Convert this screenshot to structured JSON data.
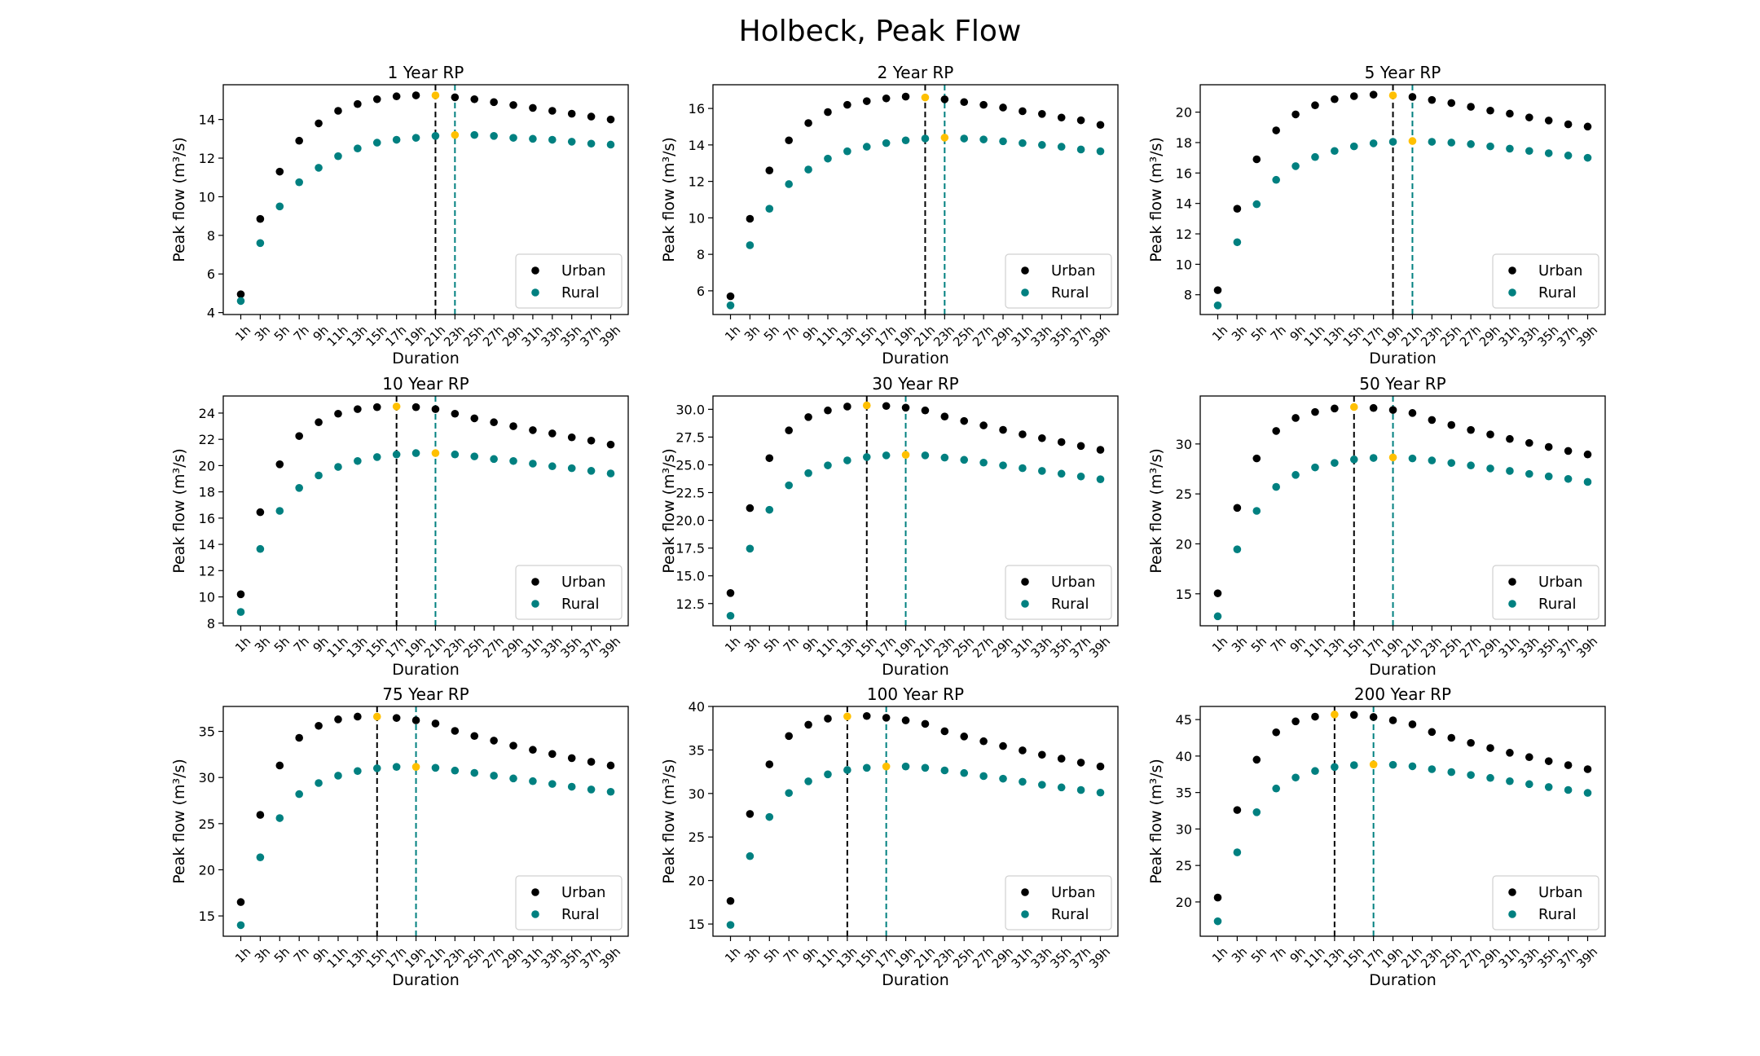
{
  "figure": {
    "title": "Holbeck, Peak Flow"
  },
  "chart_data": [
    {
      "type": "scatter",
      "title": "1 Year RP",
      "xlabel": "Duration",
      "ylabel": "Peak flow (m³/s)",
      "categories": [
        "1h",
        "3h",
        "5h",
        "7h",
        "9h",
        "11h",
        "13h",
        "15h",
        "17h",
        "19h",
        "21h",
        "23h",
        "25h",
        "27h",
        "29h",
        "31h",
        "33h",
        "35h",
        "37h",
        "39h"
      ],
      "ylim": [
        3.9,
        15.8
      ],
      "yticks": [
        4,
        6,
        8,
        10,
        12,
        14
      ],
      "ytick_labels": [
        "4",
        "6",
        "8",
        "10",
        "12",
        "14"
      ],
      "series": [
        {
          "name": "Urban",
          "color": "#000000",
          "values": [
            4.95,
            8.85,
            11.3,
            12.9,
            13.8,
            14.45,
            14.8,
            15.05,
            15.2,
            15.25,
            15.25,
            15.15,
            15.05,
            14.9,
            14.75,
            14.6,
            14.45,
            14.3,
            14.15,
            14.0
          ],
          "peak_index": 10,
          "peak_color": "#FFC000"
        },
        {
          "name": "Rural",
          "color": "#008080",
          "values": [
            4.6,
            7.6,
            9.5,
            10.75,
            11.5,
            12.1,
            12.5,
            12.8,
            12.95,
            13.05,
            13.15,
            13.2,
            13.2,
            13.15,
            13.05,
            13.0,
            12.95,
            12.85,
            12.75,
            12.7
          ],
          "peak_index": 11,
          "peak_color": "#FFC000"
        }
      ],
      "vlines": [
        {
          "at": "21h",
          "color": "#000000"
        },
        {
          "at": "23h",
          "color": "#008080"
        }
      ],
      "legend": "lower-right"
    },
    {
      "type": "scatter",
      "title": "2 Year RP",
      "xlabel": "Duration",
      "ylabel": "Peak flow (m³/s)",
      "categories": [
        "1h",
        "3h",
        "5h",
        "7h",
        "9h",
        "11h",
        "13h",
        "15h",
        "17h",
        "19h",
        "21h",
        "23h",
        "25h",
        "27h",
        "29h",
        "31h",
        "33h",
        "35h",
        "37h",
        "39h"
      ],
      "ylim": [
        4.7,
        17.3
      ],
      "yticks": [
        6,
        8,
        10,
        12,
        14,
        16
      ],
      "ytick_labels": [
        "6",
        "8",
        "10",
        "12",
        "14",
        "16"
      ],
      "series": [
        {
          "name": "Urban",
          "color": "#000000",
          "values": [
            5.7,
            9.95,
            12.6,
            14.25,
            15.2,
            15.8,
            16.2,
            16.4,
            16.55,
            16.65,
            16.6,
            16.5,
            16.35,
            16.2,
            16.05,
            15.85,
            15.7,
            15.5,
            15.35,
            15.1
          ],
          "peak_index": 10,
          "peak_color": "#FFC000"
        },
        {
          "name": "Rural",
          "color": "#008080",
          "values": [
            5.2,
            8.5,
            10.5,
            11.85,
            12.65,
            13.25,
            13.65,
            13.9,
            14.1,
            14.25,
            14.35,
            14.4,
            14.35,
            14.3,
            14.2,
            14.1,
            14.0,
            13.9,
            13.75,
            13.65
          ],
          "peak_index": 11,
          "peak_color": "#FFC000"
        }
      ],
      "vlines": [
        {
          "at": "21h",
          "color": "#000000"
        },
        {
          "at": "23h",
          "color": "#008080"
        }
      ],
      "legend": "lower-right"
    },
    {
      "type": "scatter",
      "title": "5 Year RP",
      "xlabel": "Duration",
      "ylabel": "Peak flow (m³/s)",
      "categories": [
        "1h",
        "3h",
        "5h",
        "7h",
        "9h",
        "11h",
        "13h",
        "15h",
        "17h",
        "19h",
        "21h",
        "23h",
        "25h",
        "27h",
        "29h",
        "31h",
        "33h",
        "35h",
        "37h",
        "39h"
      ],
      "ylim": [
        6.7,
        21.8
      ],
      "yticks": [
        8,
        10,
        12,
        14,
        16,
        18,
        20
      ],
      "ytick_labels": [
        "8",
        "10",
        "12",
        "14",
        "16",
        "18",
        "20"
      ],
      "series": [
        {
          "name": "Urban",
          "color": "#000000",
          "values": [
            8.3,
            13.65,
            16.9,
            18.8,
            19.85,
            20.45,
            20.85,
            21.05,
            21.15,
            21.1,
            21.0,
            20.8,
            20.6,
            20.35,
            20.1,
            19.9,
            19.65,
            19.45,
            19.2,
            19.05
          ],
          "peak_index": 9,
          "peak_color": "#FFC000"
        },
        {
          "name": "Rural",
          "color": "#008080",
          "values": [
            7.3,
            11.45,
            13.95,
            15.55,
            16.45,
            17.05,
            17.45,
            17.75,
            17.95,
            18.05,
            18.1,
            18.05,
            18.0,
            17.9,
            17.75,
            17.6,
            17.45,
            17.3,
            17.15,
            17.0
          ],
          "peak_index": 10,
          "peak_color": "#FFC000"
        }
      ],
      "vlines": [
        {
          "at": "19h",
          "color": "#000000"
        },
        {
          "at": "21h",
          "color": "#008080"
        }
      ],
      "legend": "lower-right"
    },
    {
      "type": "scatter",
      "title": "10 Year RP",
      "xlabel": "Duration",
      "ylabel": "Peak flow (m³/s)",
      "categories": [
        "1h",
        "3h",
        "5h",
        "7h",
        "9h",
        "11h",
        "13h",
        "15h",
        "17h",
        "19h",
        "21h",
        "23h",
        "25h",
        "27h",
        "29h",
        "31h",
        "33h",
        "35h",
        "37h",
        "39h"
      ],
      "ylim": [
        7.8,
        25.3
      ],
      "yticks": [
        8,
        10,
        12,
        14,
        16,
        18,
        20,
        22,
        24
      ],
      "ytick_labels": [
        "8",
        "10",
        "12",
        "14",
        "16",
        "18",
        "20",
        "22",
        "24"
      ],
      "series": [
        {
          "name": "Urban",
          "color": "#000000",
          "values": [
            10.2,
            16.45,
            20.1,
            22.25,
            23.3,
            23.95,
            24.3,
            24.45,
            24.5,
            24.45,
            24.3,
            23.95,
            23.6,
            23.3,
            23.0,
            22.7,
            22.45,
            22.15,
            21.9,
            21.6
          ],
          "peak_index": 8,
          "peak_color": "#FFC000"
        },
        {
          "name": "Rural",
          "color": "#008080",
          "values": [
            8.85,
            13.65,
            16.55,
            18.3,
            19.25,
            19.9,
            20.35,
            20.65,
            20.85,
            20.95,
            20.95,
            20.85,
            20.7,
            20.5,
            20.35,
            20.15,
            19.95,
            19.8,
            19.6,
            19.4
          ],
          "peak_index": 10,
          "peak_color": "#FFC000"
        }
      ],
      "vlines": [
        {
          "at": "17h",
          "color": "#000000"
        },
        {
          "at": "21h",
          "color": "#008080"
        }
      ],
      "legend": "lower-right"
    },
    {
      "type": "scatter",
      "title": "30 Year RP",
      "xlabel": "Duration",
      "ylabel": "Peak flow (m³/s)",
      "categories": [
        "1h",
        "3h",
        "5h",
        "7h",
        "9h",
        "11h",
        "13h",
        "15h",
        "17h",
        "19h",
        "21h",
        "23h",
        "25h",
        "27h",
        "29h",
        "31h",
        "33h",
        "35h",
        "37h",
        "39h"
      ],
      "ylim": [
        10.5,
        31.2
      ],
      "yticks": [
        12.5,
        15.0,
        17.5,
        20.0,
        22.5,
        25.0,
        27.5,
        30.0
      ],
      "ytick_labels": [
        "12.5",
        "15.0",
        "17.5",
        "20.0",
        "22.5",
        "25.0",
        "27.5",
        "30.0"
      ],
      "series": [
        {
          "name": "Urban",
          "color": "#000000",
          "values": [
            13.45,
            21.1,
            25.6,
            28.1,
            29.3,
            29.9,
            30.25,
            30.35,
            30.3,
            30.15,
            29.9,
            29.35,
            28.95,
            28.55,
            28.15,
            27.75,
            27.4,
            27.05,
            26.7,
            26.35
          ],
          "peak_index": 7,
          "peak_color": "#FFC000"
        },
        {
          "name": "Rural",
          "color": "#008080",
          "values": [
            11.4,
            17.45,
            20.95,
            23.15,
            24.25,
            24.95,
            25.4,
            25.7,
            25.85,
            25.9,
            25.85,
            25.65,
            25.45,
            25.2,
            24.95,
            24.7,
            24.45,
            24.2,
            23.95,
            23.7
          ],
          "peak_index": 9,
          "peak_color": "#FFC000"
        }
      ],
      "vlines": [
        {
          "at": "15h",
          "color": "#000000"
        },
        {
          "at": "19h",
          "color": "#008080"
        }
      ],
      "legend": "lower-right"
    },
    {
      "type": "scatter",
      "title": "50 Year RP",
      "xlabel": "Duration",
      "ylabel": "Peak flow (m³/s)",
      "categories": [
        "1h",
        "3h",
        "5h",
        "7h",
        "9h",
        "11h",
        "13h",
        "15h",
        "17h",
        "19h",
        "21h",
        "23h",
        "25h",
        "27h",
        "29h",
        "31h",
        "33h",
        "35h",
        "37h",
        "39h"
      ],
      "ylim": [
        11.8,
        34.8
      ],
      "yticks": [
        15,
        20,
        25,
        30
      ],
      "ytick_labels": [
        "15",
        "20",
        "25",
        "30"
      ],
      "series": [
        {
          "name": "Urban",
          "color": "#000000",
          "values": [
            15.05,
            23.6,
            28.55,
            31.3,
            32.6,
            33.2,
            33.55,
            33.7,
            33.6,
            33.4,
            33.1,
            32.4,
            31.9,
            31.4,
            30.95,
            30.5,
            30.1,
            29.7,
            29.3,
            28.95
          ],
          "peak_index": 7,
          "peak_color": "#FFC000"
        },
        {
          "name": "Rural",
          "color": "#008080",
          "values": [
            12.75,
            19.45,
            23.3,
            25.7,
            26.9,
            27.65,
            28.1,
            28.45,
            28.6,
            28.65,
            28.55,
            28.35,
            28.1,
            27.85,
            27.55,
            27.3,
            27.0,
            26.75,
            26.5,
            26.2
          ],
          "peak_index": 9,
          "peak_color": "#FFC000"
        }
      ],
      "vlines": [
        {
          "at": "15h",
          "color": "#000000"
        },
        {
          "at": "19h",
          "color": "#008080"
        }
      ],
      "legend": "lower-right"
    },
    {
      "type": "scatter",
      "title": "75 Year RP",
      "xlabel": "Duration",
      "ylabel": "Peak flow (m³/s)",
      "categories": [
        "1h",
        "3h",
        "5h",
        "7h",
        "9h",
        "11h",
        "13h",
        "15h",
        "17h",
        "19h",
        "21h",
        "23h",
        "25h",
        "27h",
        "29h",
        "31h",
        "33h",
        "35h",
        "37h",
        "39h"
      ],
      "ylim": [
        12.8,
        37.7
      ],
      "yticks": [
        15,
        20,
        25,
        30,
        35
      ],
      "ytick_labels": [
        "15",
        "20",
        "25",
        "30",
        "35"
      ],
      "series": [
        {
          "name": "Urban",
          "color": "#000000",
          "values": [
            16.5,
            25.95,
            31.3,
            34.3,
            35.6,
            36.3,
            36.6,
            36.6,
            36.45,
            36.2,
            35.85,
            35.05,
            34.5,
            34.0,
            33.45,
            33.0,
            32.55,
            32.1,
            31.7,
            31.3
          ],
          "peak_index": 7,
          "peak_color": "#FFC000"
        },
        {
          "name": "Rural",
          "color": "#008080",
          "values": [
            14.0,
            21.35,
            25.6,
            28.2,
            29.4,
            30.2,
            30.7,
            31.0,
            31.15,
            31.15,
            31.05,
            30.75,
            30.5,
            30.2,
            29.9,
            29.6,
            29.3,
            29.0,
            28.7,
            28.45
          ],
          "peak_index": 9,
          "peak_color": "#FFC000"
        }
      ],
      "vlines": [
        {
          "at": "15h",
          "color": "#000000"
        },
        {
          "at": "19h",
          "color": "#008080"
        }
      ],
      "legend": "lower-right"
    },
    {
      "type": "scatter",
      "title": "100 Year RP",
      "xlabel": "Duration",
      "ylabel": "Peak flow (m³/s)",
      "categories": [
        "1h",
        "3h",
        "5h",
        "7h",
        "9h",
        "11h",
        "13h",
        "15h",
        "17h",
        "19h",
        "21h",
        "23h",
        "25h",
        "27h",
        "29h",
        "31h",
        "33h",
        "35h",
        "37h",
        "39h"
      ],
      "ylim": [
        13.6,
        40.0
      ],
      "yticks": [
        15,
        20,
        25,
        30,
        35,
        40
      ],
      "ytick_labels": [
        "15",
        "20",
        "25",
        "30",
        "35",
        "40"
      ],
      "series": [
        {
          "name": "Urban",
          "color": "#000000",
          "values": [
            17.65,
            27.65,
            33.35,
            36.6,
            37.9,
            38.6,
            38.85,
            38.9,
            38.7,
            38.4,
            38.0,
            37.15,
            36.55,
            36.0,
            35.45,
            34.95,
            34.45,
            34.0,
            33.55,
            33.1
          ],
          "peak_index": 6,
          "peak_color": "#FFC000"
        },
        {
          "name": "Rural",
          "color": "#008080",
          "values": [
            14.9,
            22.8,
            27.3,
            30.05,
            31.4,
            32.2,
            32.7,
            32.95,
            33.1,
            33.1,
            32.95,
            32.65,
            32.35,
            32.0,
            31.7,
            31.35,
            31.0,
            30.7,
            30.4,
            30.1
          ],
          "peak_index": 8,
          "peak_color": "#FFC000"
        }
      ],
      "vlines": [
        {
          "at": "13h",
          "color": "#000000"
        },
        {
          "at": "17h",
          "color": "#008080"
        }
      ],
      "legend": "lower-right"
    },
    {
      "type": "scatter",
      "title": "200 Year RP",
      "xlabel": "Duration",
      "ylabel": "Peak flow (m³/s)",
      "categories": [
        "1h",
        "3h",
        "5h",
        "7h",
        "9h",
        "11h",
        "13h",
        "15h",
        "17h",
        "19h",
        "21h",
        "23h",
        "25h",
        "27h",
        "29h",
        "31h",
        "33h",
        "35h",
        "37h",
        "39h"
      ],
      "ylim": [
        15.3,
        46.8
      ],
      "yticks": [
        20,
        25,
        30,
        35,
        40,
        45
      ],
      "ytick_labels": [
        "20",
        "25",
        "30",
        "35",
        "40",
        "45"
      ],
      "series": [
        {
          "name": "Urban",
          "color": "#000000",
          "values": [
            20.6,
            32.6,
            39.5,
            43.25,
            44.75,
            45.4,
            45.7,
            45.65,
            45.35,
            44.9,
            44.35,
            43.3,
            42.5,
            41.8,
            41.1,
            40.45,
            39.85,
            39.3,
            38.75,
            38.2
          ],
          "peak_index": 6,
          "peak_color": "#FFC000"
        },
        {
          "name": "Rural",
          "color": "#008080",
          "values": [
            17.35,
            26.8,
            32.3,
            35.55,
            37.05,
            37.95,
            38.5,
            38.75,
            38.85,
            38.8,
            38.6,
            38.2,
            37.8,
            37.4,
            37.0,
            36.55,
            36.15,
            35.75,
            35.35,
            34.95
          ],
          "peak_index": 8,
          "peak_color": "#FFC000"
        }
      ],
      "vlines": [
        {
          "at": "13h",
          "color": "#000000"
        },
        {
          "at": "17h",
          "color": "#008080"
        }
      ],
      "legend": "lower-right"
    }
  ]
}
